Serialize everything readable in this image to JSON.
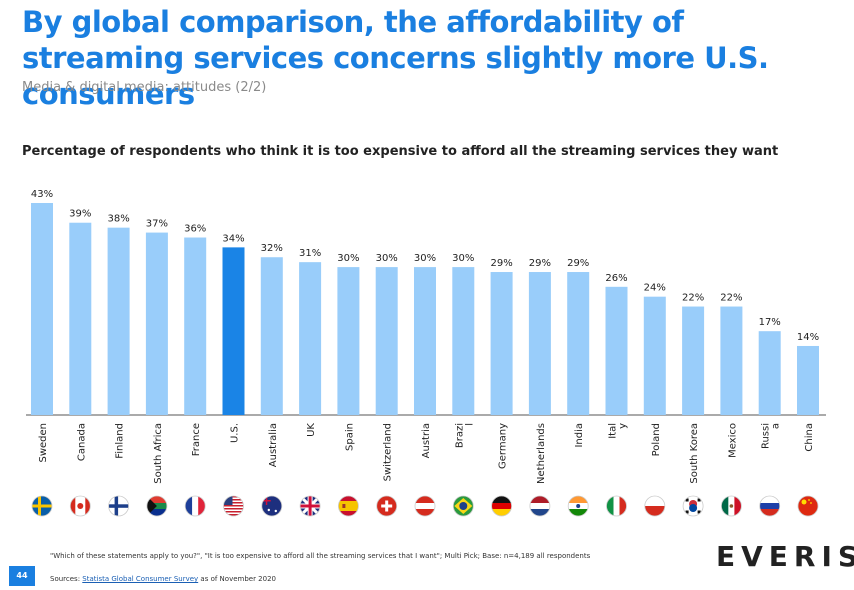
{
  "header": {
    "title": "By global comparison, the affordability of streaming services concerns slightly more U.S. consumers",
    "subtitle": "Media & digital media: attitudes (2/2)"
  },
  "chart_title": "Percentage of respondents who think it is too expensive to afford all the streaming services they want",
  "chart_data": {
    "type": "bar",
    "title": "Percentage of respondents who think it is too expensive to afford all the streaming services they want",
    "xlabel": "",
    "ylabel": "",
    "categories": [
      "Sweden",
      "Canada",
      "Finland",
      "South Africa",
      "France",
      "U.S.",
      "Australia",
      "UK",
      "Spain",
      "Switzerland",
      "Austria",
      "Brazi\nl",
      "Germany",
      "Netherlands",
      "India",
      "Ital\ny",
      "Poland",
      "South Korea",
      "Mexico",
      "Russi\na",
      "China"
    ],
    "values": [
      43,
      39,
      38,
      37,
      36,
      34,
      32,
      31,
      30,
      30,
      30,
      30,
      29,
      29,
      29,
      26,
      24,
      22,
      22,
      17,
      14
    ],
    "value_labels": [
      "43%",
      "39%",
      "38%",
      "37%",
      "36%",
      "34%",
      "32%",
      "31%",
      "30%",
      "30%",
      "30%",
      "30%",
      "29%",
      "29%",
      "29%",
      "26%",
      "24%",
      "22%",
      "22%",
      "17%",
      "14%"
    ],
    "ylim": [
      0,
      43
    ],
    "grid": false,
    "highlight_category": "U.S.",
    "colors": {
      "bar": "#99cdfa",
      "highlight": "#1a84e6",
      "axis": "#555555"
    },
    "flag_icons": [
      "flag-sweden-icon",
      "flag-canada-icon",
      "flag-finland-icon",
      "flag-south-africa-icon",
      "flag-france-icon",
      "flag-us-icon",
      "flag-australia-icon",
      "flag-uk-icon",
      "flag-spain-icon",
      "flag-switzerland-icon",
      "flag-austria-icon",
      "flag-brazil-icon",
      "flag-germany-icon",
      "flag-netherlands-icon",
      "flag-india-icon",
      "flag-italy-icon",
      "flag-poland-icon",
      "flag-south-korea-icon",
      "flag-mexico-icon",
      "flag-russia-icon",
      "flag-china-icon"
    ]
  },
  "footer": {
    "footnote": "\"Which of these statements apply to you?\", \"It is too expensive to afford all the streaming services that I want\"; Multi Pick; Base: n=4,189 all respondents",
    "sources_prefix": "Sources: ",
    "sources_link": "Statista Global Consumer Survey",
    "sources_suffix": " as of November 2020",
    "page_number": "44",
    "logo": "EVERISE"
  }
}
